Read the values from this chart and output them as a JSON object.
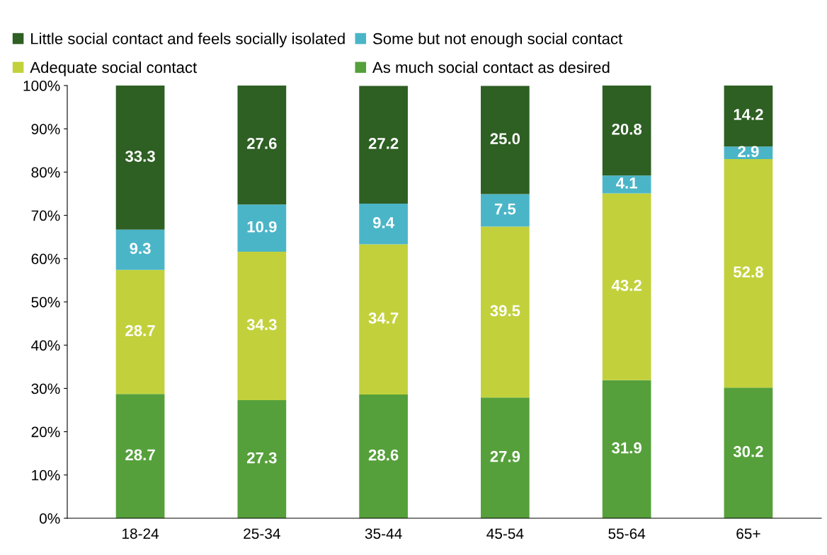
{
  "chart_data": {
    "type": "bar",
    "stacked": true,
    "legend": "top",
    "grid": false,
    "categories": [
      "18-24",
      "25-34",
      "35-44",
      "45-54",
      "55-64",
      "65+"
    ],
    "series": [
      {
        "name": "As much social contact as desired",
        "color": "#55a03b",
        "values": [
          28.7,
          27.3,
          28.6,
          27.9,
          31.9,
          30.2
        ],
        "value_labels": [
          "28.7",
          "27.3",
          "28.6",
          "27.9",
          "31.9",
          "30.2"
        ]
      },
      {
        "name": "Adequate social contact",
        "color": "#c2d13b",
        "values": [
          28.7,
          34.3,
          34.7,
          39.5,
          43.2,
          52.8
        ],
        "value_labels": [
          "28.7",
          "34.3",
          "34.7",
          "39.5",
          "43.2",
          "52.8"
        ]
      },
      {
        "name": "Some but not enough social contact",
        "color": "#4bb5c8",
        "values": [
          9.3,
          10.9,
          9.4,
          7.5,
          4.1,
          2.9
        ],
        "value_labels": [
          "9.3",
          "10.9",
          "9.4",
          "7.5",
          "4.1",
          "2.9"
        ]
      },
      {
        "name": "Little social contact and feels socially isolated",
        "color": "#2e5f23",
        "values": [
          33.3,
          27.6,
          27.2,
          25.0,
          20.8,
          14.2
        ],
        "value_labels": [
          "33.3",
          "27.6",
          "27.2",
          "25.0",
          "20.8",
          "14.2"
        ]
      }
    ],
    "ylim": [
      0,
      100
    ],
    "yticks": [
      {
        "value": 0,
        "label": "0%"
      },
      {
        "value": 10,
        "label": "10%"
      },
      {
        "value": 20,
        "label": "20%"
      },
      {
        "value": 30,
        "label": "30%"
      },
      {
        "value": 40,
        "label": "40%"
      },
      {
        "value": 50,
        "label": "50%"
      },
      {
        "value": 60,
        "label": "60%"
      },
      {
        "value": 70,
        "label": "70%"
      },
      {
        "value": 80,
        "label": "80%"
      },
      {
        "value": 90,
        "label": "90%"
      },
      {
        "value": 100,
        "label": "100%"
      }
    ]
  }
}
